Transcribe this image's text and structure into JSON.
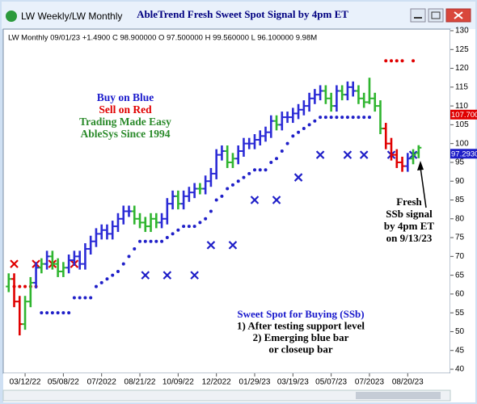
{
  "chart_data": {
    "type": "ohlc",
    "window_label": "LW Weekly/LW Monthly",
    "title": "AbleTrend Fresh Sweet Spot Signal by 4pm ET",
    "info": "LW  Monthly 09/01/23 +1.4900 C 98.900000 O 97.500000 H 99.560000 L 96.100000 9.98M",
    "open": [
      62,
      64,
      58,
      52,
      58,
      63,
      67,
      68,
      70,
      68,
      66,
      67,
      69,
      70,
      68,
      72,
      74,
      76,
      77,
      76,
      78,
      80,
      82,
      82,
      80,
      79,
      78,
      80,
      79,
      80,
      84,
      86,
      84,
      86,
      87,
      88,
      88,
      90,
      92,
      97,
      98,
      95,
      96,
      98,
      100,
      100,
      101,
      102,
      103,
      106,
      105,
      107,
      107,
      108,
      109,
      110,
      112,
      113,
      114,
      112,
      110,
      114,
      113,
      115,
      114,
      112,
      111,
      112,
      110,
      104,
      100,
      97,
      95,
      94,
      96,
      97.5
    ],
    "high": [
      65.5,
      65.5,
      59.5,
      59.5,
      64.5,
      68.5,
      69.5,
      71.5,
      71.5,
      69.5,
      68.5,
      70.5,
      71.5,
      71.5,
      73.5,
      75.5,
      77.5,
      78.5,
      78.5,
      79.5,
      81.5,
      83.5,
      83.5,
      83.5,
      81.5,
      80.5,
      81.5,
      81.5,
      81.5,
      85.5,
      87.5,
      87.5,
      87.5,
      88.5,
      89.5,
      89.5,
      91.5,
      93.5,
      98.5,
      99.5,
      99.5,
      97.5,
      99.5,
      101.5,
      101.5,
      102.5,
      103.5,
      104.5,
      107.5,
      107.5,
      108.5,
      108.5,
      109.5,
      110.5,
      111.5,
      113.5,
      114.5,
      115.5,
      115.5,
      113.5,
      115.5,
      115.5,
      116.5,
      116.5,
      115.5,
      113.5,
      117.5,
      113.5,
      111.5,
      105.5,
      101.5,
      98.5,
      96.5,
      97.5,
      98.5,
      99.56
    ],
    "low": [
      60.5,
      56.5,
      49,
      50.5,
      56.5,
      61.5,
      65.5,
      66.5,
      66.5,
      64.5,
      64.5,
      65.5,
      67.5,
      66.5,
      66.5,
      70.5,
      72.5,
      74.5,
      74.5,
      74.5,
      76.5,
      78.5,
      80.5,
      78.5,
      77.5,
      76.5,
      76.5,
      77.5,
      77.5,
      78.5,
      82.5,
      82.5,
      82.5,
      84.5,
      85.5,
      86.5,
      86.5,
      88.5,
      90.5,
      95.5,
      93.5,
      93.5,
      94.5,
      96.5,
      98.5,
      98.5,
      99.5,
      100.5,
      101.5,
      103.5,
      103.5,
      105.5,
      105.5,
      106.5,
      107.5,
      108.5,
      110.5,
      111.5,
      110.5,
      108.5,
      108.5,
      111.5,
      111.5,
      112.5,
      110.5,
      109.5,
      110.5,
      108.5,
      102.5,
      98.5,
      95.5,
      93.5,
      92.5,
      92.5,
      94.5,
      96.1
    ],
    "close": [
      64,
      58,
      52,
      58,
      63,
      67,
      68,
      70,
      68,
      66,
      67,
      69,
      70,
      68,
      72,
      74,
      76,
      77,
      76,
      78,
      80,
      82,
      82,
      80,
      79,
      78,
      80,
      79,
      80,
      84,
      86,
      84,
      86,
      87,
      88,
      88,
      90,
      92,
      97,
      98,
      95,
      96,
      98,
      100,
      100,
      101,
      102,
      103,
      106,
      105,
      107,
      107,
      108,
      109,
      110,
      112,
      113,
      114,
      112,
      110,
      114,
      113,
      115,
      114,
      112,
      111,
      112,
      110,
      104,
      100,
      97,
      95,
      94,
      96,
      97,
      98.9
    ],
    "bar_colors": [
      "#2fb52f",
      "#e00000",
      "#e00000",
      "#2fb52f",
      "#2fb52f",
      "#2b2bd6",
      "#2fb52f",
      "#2b2bd6",
      "#2fb52f",
      "#2fb52f",
      "#2fb52f",
      "#2b2bd6",
      "#2b2bd6",
      "#2b2bd6",
      "#2b2bd6",
      "#2b2bd6",
      "#2b2bd6",
      "#2b2bd6",
      "#2b2bd6",
      "#2b2bd6",
      "#2b2bd6",
      "#2b2bd6",
      "#2b2bd6",
      "#2fb52f",
      "#2fb52f",
      "#2fb52f",
      "#2fb52f",
      "#2fb52f",
      "#2b2bd6",
      "#2b2bd6",
      "#2b2bd6",
      "#2fb52f",
      "#2b2bd6",
      "#2b2bd6",
      "#2b2bd6",
      "#2fb52f",
      "#2b2bd6",
      "#2b2bd6",
      "#2b2bd6",
      "#2b2bd6",
      "#2fb52f",
      "#2fb52f",
      "#2b2bd6",
      "#2b2bd6",
      "#2b2bd6",
      "#2b2bd6",
      "#2b2bd6",
      "#2b2bd6",
      "#2b2bd6",
      "#2fb52f",
      "#2b2bd6",
      "#2b2bd6",
      "#2b2bd6",
      "#2b2bd6",
      "#2b2bd6",
      "#2b2bd6",
      "#2b2bd6",
      "#2b2bd6",
      "#2fb52f",
      "#2fb52f",
      "#2b2bd6",
      "#2fb52f",
      "#2b2bd6",
      "#2b2bd6",
      "#2fb52f",
      "#2fb52f",
      "#2fb52f",
      "#2fb52f",
      "#2fb52f",
      "#e00000",
      "#e00000",
      "#e00000",
      "#e00000",
      "#2b2bd6",
      "#2fb52f",
      "#2fb52f"
    ],
    "support": {
      "color": "#1f1fc8",
      "values": [
        null,
        null,
        null,
        null,
        null,
        null,
        55,
        55,
        55,
        55,
        55,
        55,
        59,
        59,
        59,
        59,
        62,
        63,
        64,
        65,
        66,
        68,
        70,
        72,
        74,
        74,
        74,
        74,
        74,
        75,
        76,
        77,
        78,
        78,
        78,
        79,
        80,
        82,
        85,
        86,
        88,
        89,
        90,
        91,
        92,
        93,
        93,
        93,
        95,
        96,
        98,
        100,
        102,
        103,
        104,
        105,
        106,
        107,
        107,
        107,
        107,
        107,
        107,
        107,
        107,
        107,
        107,
        null,
        null,
        null,
        null,
        null,
        null,
        null,
        null,
        null
      ]
    },
    "resistance": {
      "color": "#e00000",
      "values": [
        null,
        62,
        62,
        62,
        62,
        62,
        null,
        null,
        null,
        null,
        null,
        null,
        null,
        null,
        null,
        null,
        null,
        null,
        null,
        null,
        null,
        null,
        null,
        null,
        null,
        null,
        null,
        null,
        null,
        null,
        null,
        null,
        null,
        null,
        null,
        null,
        null,
        null,
        null,
        null,
        null,
        null,
        null,
        null,
        null,
        null,
        null,
        null,
        null,
        null,
        null,
        null,
        null,
        null,
        null,
        null,
        null,
        null,
        null,
        null,
        null,
        null,
        null,
        null,
        null,
        null,
        null,
        null,
        null,
        122,
        122,
        122,
        122,
        null,
        122,
        null
      ]
    },
    "sell_marks": {
      "color": "#e00000",
      "x": [
        1,
        5,
        8,
        12
      ],
      "values": [
        68,
        68,
        68,
        68
      ]
    },
    "buy_marks": {
      "color": "#1f1fc8",
      "x": [
        25,
        29,
        34,
        37,
        41,
        45,
        49,
        53,
        57,
        62,
        65,
        70,
        74
      ],
      "values": [
        65,
        65,
        65,
        73,
        73,
        85,
        85,
        91,
        97,
        97,
        97,
        97,
        97
      ]
    },
    "price_tags": [
      {
        "value": 107.7,
        "label": "107.700",
        "color": "#e00000"
      },
      {
        "value": 97.293,
        "label": "97.2930",
        "color": "#1f1fc8"
      }
    ],
    "legend_lines": [
      {
        "text": "Buy on Blue",
        "color": "#1a1acc"
      },
      {
        "text": "Sell on Red",
        "color": "#e00000"
      },
      {
        "text": "Trading Made Easy",
        "color": "#2a8a2a"
      },
      {
        "text": "AbleSys Since 1994",
        "color": "#2a8a2a"
      }
    ],
    "signal_note": [
      "Fresh",
      "SSb signal",
      "by 4pm ET",
      "on 9/13/23"
    ],
    "sweet_spot_note": [
      "Sweet Spot for Buying (SSb)",
      "1) After testing support level",
      "2) Emerging blue bar",
      "or closeup bar"
    ],
    "xlim": [
      -1,
      80.5
    ],
    "xticks": [
      {
        "value": 3,
        "label": "03/12/22"
      },
      {
        "value": 10,
        "label": "05/08/22"
      },
      {
        "value": 17,
        "label": "07/2022"
      },
      {
        "value": 24,
        "label": "08/21/22"
      },
      {
        "value": 31,
        "label": "10/09/22"
      },
      {
        "value": 38,
        "label": "12/2022"
      },
      {
        "value": 45,
        "label": "01/29/23"
      },
      {
        "value": 52,
        "label": "03/19/23"
      },
      {
        "value": 59,
        "label": "05/07/23"
      },
      {
        "value": 66,
        "label": "07/2023"
      },
      {
        "value": 73,
        "label": "08/20/23"
      }
    ],
    "ylim": [
      40,
      130
    ],
    "yticks": [
      40,
      45,
      50,
      55,
      60,
      65,
      70,
      75,
      80,
      85,
      90,
      95,
      100,
      105,
      110,
      115,
      120,
      125,
      130
    ]
  }
}
